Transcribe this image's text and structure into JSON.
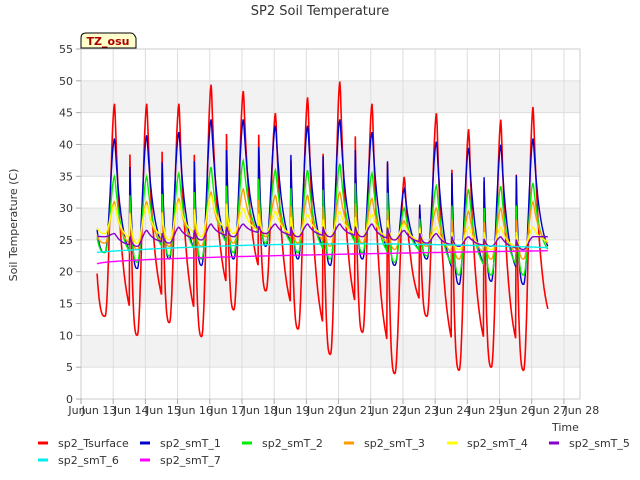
{
  "chart_data": {
    "type": "line",
    "title": "SP2 Soil Temperature",
    "xlabel": "Time",
    "ylabel": "Soil Temperature (C)",
    "site_label": "TZ_osu",
    "xlim": [
      12.5,
      28.0
    ],
    "ylim": [
      0,
      55
    ],
    "xticks": [
      {
        "value": 12.5,
        "label": "Jun 13"
      },
      {
        "value": 13.5,
        "label": "Jun 14"
      },
      {
        "value": 14.5,
        "label": "Jun 15"
      },
      {
        "value": 15.5,
        "label": "Jun 16"
      },
      {
        "value": 16.5,
        "label": "Jun 17"
      },
      {
        "value": 17.5,
        "label": "Jun 18"
      },
      {
        "value": 18.5,
        "label": "Jun 19"
      },
      {
        "value": 19.5,
        "label": "Jun 20"
      },
      {
        "value": 20.5,
        "label": "Jun 21"
      },
      {
        "value": 21.5,
        "label": "Jun 22"
      },
      {
        "value": 22.5,
        "label": "Jun 23"
      },
      {
        "value": 23.5,
        "label": "Jun 24"
      },
      {
        "value": 24.5,
        "label": "Jun 25"
      },
      {
        "value": 25.5,
        "label": "Jun 26"
      },
      {
        "value": 26.5,
        "label": "Jun 27"
      },
      {
        "value": 27.5,
        "label": "Jun 28"
      }
    ],
    "x_first_label": "Jun",
    "yticks": [
      0,
      5,
      10,
      15,
      20,
      25,
      30,
      35,
      40,
      45,
      50,
      55
    ],
    "grid": true,
    "legend_position": "bottom",
    "x_range": [
      13.0,
      27.0
    ],
    "series": [
      {
        "name": "sp2_Tsurface",
        "color": "#ff0000",
        "width": 1.6,
        "peaks": [
          46.5,
          46.5,
          46.5,
          49.5,
          48.5,
          45.0,
          47.5,
          50.0,
          46.5,
          35.0,
          45.0,
          42.5,
          44.0,
          46.0
        ],
        "mins": [
          13.0,
          10.0,
          12.0,
          9.8,
          14.0,
          17.0,
          11.0,
          7.0,
          10.5,
          4.0,
          13.0,
          4.5,
          5.0,
          4.5,
          9.5
        ]
      },
      {
        "name": "sp2_smT_1",
        "color": "#0000cc",
        "width": 1.4,
        "peaks": [
          41.0,
          41.5,
          42.0,
          44.0,
          44.0,
          43.0,
          43.0,
          44.0,
          42.0,
          33.0,
          40.5,
          39.5,
          40.0,
          41.0
        ],
        "mins": [
          23.0,
          20.5,
          22.0,
          21.0,
          22.0,
          24.0,
          22.0,
          21.0,
          22.0,
          21.0,
          22.0,
          18.0,
          18.5,
          18.0,
          21.5
        ]
      },
      {
        "name": "sp2_smT_2",
        "color": "#00ee00",
        "width": 1.4,
        "peaks": [
          35.0,
          35.0,
          35.5,
          36.5,
          37.5,
          36.0,
          36.0,
          37.0,
          35.5,
          30.0,
          33.5,
          33.0,
          33.5,
          34.0
        ],
        "mins": [
          23.0,
          21.5,
          22.5,
          22.0,
          23.0,
          24.5,
          23.0,
          22.0,
          23.0,
          21.5,
          22.5,
          19.5,
          19.5,
          19.5,
          22.0
        ]
      },
      {
        "name": "sp2_smT_3",
        "color": "#ff9900",
        "width": 1.4,
        "peaks": [
          31.0,
          31.0,
          31.5,
          32.5,
          33.0,
          32.0,
          32.0,
          32.5,
          31.5,
          28.0,
          30.0,
          29.5,
          30.0,
          31.0
        ],
        "mins": [
          24.5,
          23.5,
          24.0,
          24.0,
          24.5,
          25.5,
          24.5,
          24.0,
          24.5,
          23.5,
          24.0,
          22.0,
          22.0,
          22.0,
          23.5
        ]
      },
      {
        "name": "sp2_smT_4",
        "color": "#ffff00",
        "width": 1.4,
        "peaks": [
          30.5,
          30.5,
          31.0,
          32.0,
          30.0,
          29.5,
          29.0,
          29.5,
          29.0,
          27.5,
          27.0,
          27.0,
          27.0,
          27.0
        ],
        "mins": [
          26.0,
          24.5,
          25.0,
          25.5,
          26.0,
          26.0,
          25.5,
          25.5,
          25.5,
          25.0,
          24.5,
          23.5,
          23.5,
          23.5,
          24.5
        ]
      },
      {
        "name": "sp2_smT_5",
        "color": "#8800cc",
        "width": 1.4,
        "peaks": [
          26.0,
          26.5,
          27.0,
          27.5,
          27.5,
          27.5,
          27.5,
          27.5,
          27.5,
          26.5,
          26.0,
          25.5,
          25.5,
          25.5
        ],
        "mins": [
          25.5,
          24.0,
          24.5,
          25.0,
          25.5,
          26.0,
          25.5,
          25.5,
          25.5,
          25.0,
          24.5,
          24.0,
          24.0,
          23.5,
          25.5
        ]
      },
      {
        "name": "sp2_smT_6",
        "color": "#00eeee",
        "width": 1.4,
        "start": 23.0,
        "end": 23.8,
        "bump": 0.8
      },
      {
        "name": "sp2_smT_7",
        "color": "#ff00ff",
        "width": 1.4,
        "start": 21.2,
        "end": 23.3,
        "bump": 0.0
      }
    ]
  }
}
